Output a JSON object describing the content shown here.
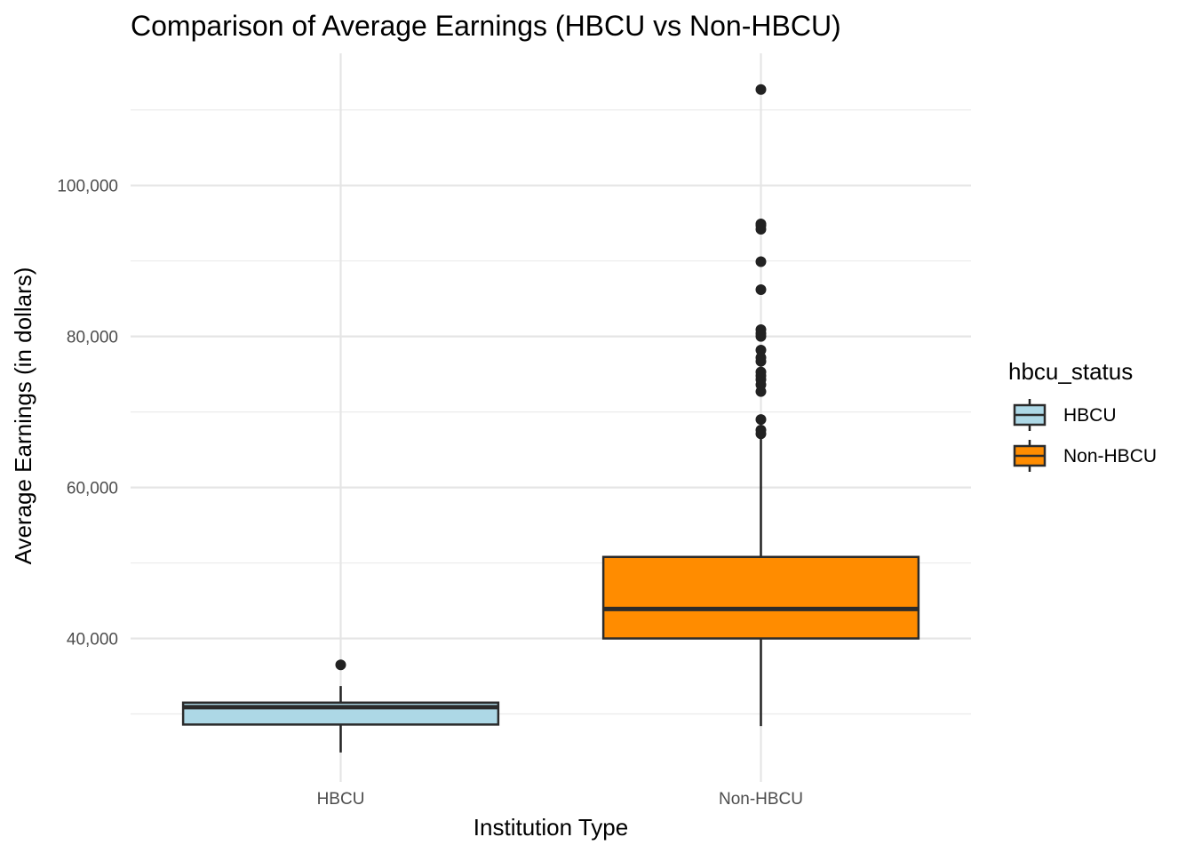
{
  "chart_data": {
    "type": "boxplot",
    "title": "Comparison of Average Earnings (HBCU vs Non-HBCU)",
    "xlabel": "Institution Type",
    "ylabel": "Average Earnings (in dollars)",
    "ylim": [
      21000,
      117500
    ],
    "yticks": [
      40000,
      60000,
      80000,
      100000
    ],
    "ytick_labels": [
      "40,000",
      "60,000",
      "80,000",
      "100,000"
    ],
    "y_minor_ticks": [
      30000,
      50000,
      70000,
      90000,
      110000
    ],
    "grid": true,
    "legend": {
      "title": "hbcu_status",
      "placement": "right",
      "items": [
        {
          "label": "HBCU",
          "color": "#add8e6"
        },
        {
          "label": "Non-HBCU",
          "color": "#ff8c00"
        }
      ]
    },
    "categories": [
      "HBCU",
      "Non-HBCU"
    ],
    "boxes": [
      {
        "category": "HBCU",
        "color": "#add8e6",
        "whisker_low": 24900,
        "q1": 28600,
        "median": 30900,
        "q3": 31500,
        "whisker_high": 33700,
        "outliers": [
          36500
        ]
      },
      {
        "category": "Non-HBCU",
        "color": "#ff8c00",
        "whisker_low": 28400,
        "q1": 40000,
        "median": 43900,
        "q3": 50800,
        "whisker_high": 66800,
        "outliers": [
          67100,
          67600,
          69000,
          72700,
          73600,
          74300,
          74800,
          75300,
          76700,
          77200,
          78200,
          80000,
          80400,
          80900,
          86200,
          89900,
          94200,
          94700,
          94900,
          112700
        ]
      }
    ]
  }
}
